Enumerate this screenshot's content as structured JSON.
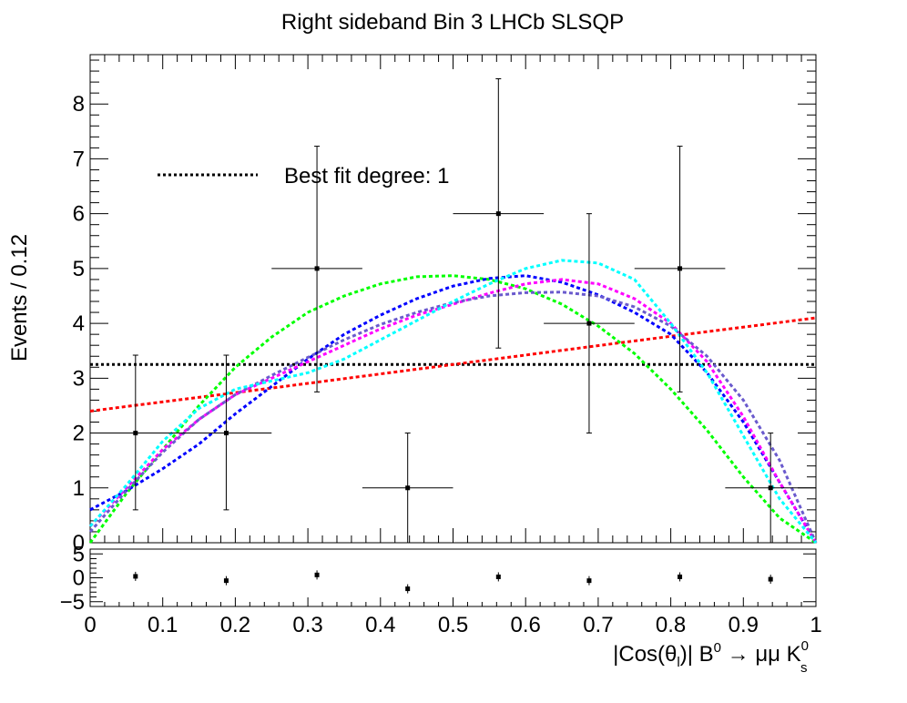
{
  "chart_data": {
    "type": "scatter",
    "title": "Right sideband Bin 3 LHCb SLSQP",
    "ylabel": "Events / 0.12",
    "xlabel_parts": {
      "pre": "|Cos(θ",
      "sub1": "l",
      "mid": ")| B",
      "sup1": "0",
      "arrow": " → μμ K",
      "sup2": "0",
      "sub2": "s"
    },
    "xlim": [
      0,
      1
    ],
    "ylim": [
      0,
      8.9
    ],
    "ratio_ylim": [
      -6,
      6
    ],
    "x_ticks": [
      "0",
      "0.1",
      "0.2",
      "0.3",
      "0.4",
      "0.5",
      "0.6",
      "0.7",
      "0.8",
      "0.9",
      "1"
    ],
    "y_ticks": [
      "0",
      "1",
      "2",
      "3",
      "4",
      "5",
      "6",
      "7",
      "8"
    ],
    "ratio_ticks": [
      "5",
      "0",
      "−5"
    ],
    "legend": {
      "label": "Best fit degree: 1",
      "position": "top-left"
    },
    "data_points": [
      {
        "x": 0.0625,
        "y": 2,
        "xerr": 0.0625,
        "ylo": 0.6,
        "yhi": 3.42
      },
      {
        "x": 0.1875,
        "y": 2,
        "xerr": 0.0625,
        "ylo": 0.6,
        "yhi": 3.42
      },
      {
        "x": 0.3125,
        "y": 5,
        "xerr": 0.0625,
        "ylo": 2.75,
        "yhi": 7.23
      },
      {
        "x": 0.4375,
        "y": 1,
        "xerr": 0.0625,
        "ylo": 0.0,
        "yhi": 2.0
      },
      {
        "x": 0.5625,
        "y": 6,
        "xerr": 0.0625,
        "ylo": 3.55,
        "yhi": 8.46
      },
      {
        "x": 0.6875,
        "y": 4,
        "xerr": 0.0625,
        "ylo": 2.0,
        "yhi": 6.0
      },
      {
        "x": 0.8125,
        "y": 5,
        "xerr": 0.0625,
        "ylo": 2.75,
        "yhi": 7.23
      },
      {
        "x": 0.9375,
        "y": 1,
        "xerr": 0.0625,
        "ylo": 0.0,
        "yhi": 2.0
      }
    ],
    "ratio_points": [
      {
        "x": 0.0625,
        "y": 0.3
      },
      {
        "x": 0.1875,
        "y": -0.6
      },
      {
        "x": 0.3125,
        "y": 0.6
      },
      {
        "x": 0.4375,
        "y": -2.3
      },
      {
        "x": 0.5625,
        "y": 0.2
      },
      {
        "x": 0.6875,
        "y": -0.6
      },
      {
        "x": 0.8125,
        "y": 0.2
      },
      {
        "x": 0.9375,
        "y": -0.3
      }
    ],
    "series": [
      {
        "style": "black-dotted",
        "color": "#000000",
        "points": [
          [
            0,
            3.25
          ],
          [
            1,
            3.25
          ]
        ]
      },
      {
        "style": "red-dashed",
        "color": "#ff0000",
        "points": [
          [
            0,
            2.4
          ],
          [
            0.25,
            2.82
          ],
          [
            0.5,
            3.25
          ],
          [
            0.75,
            3.68
          ],
          [
            1,
            4.1
          ]
        ]
      },
      {
        "style": "green-dashed",
        "color": "#00ff00",
        "points": [
          [
            0,
            0.0
          ],
          [
            0.05,
            0.9
          ],
          [
            0.1,
            1.7
          ],
          [
            0.15,
            2.5
          ],
          [
            0.2,
            3.2
          ],
          [
            0.25,
            3.75
          ],
          [
            0.3,
            4.2
          ],
          [
            0.35,
            4.5
          ],
          [
            0.4,
            4.72
          ],
          [
            0.45,
            4.85
          ],
          [
            0.5,
            4.87
          ],
          [
            0.55,
            4.8
          ],
          [
            0.6,
            4.63
          ],
          [
            0.65,
            4.35
          ],
          [
            0.7,
            3.95
          ],
          [
            0.75,
            3.45
          ],
          [
            0.8,
            2.8
          ],
          [
            0.85,
            2.05
          ],
          [
            0.9,
            1.2
          ],
          [
            0.95,
            0.45
          ],
          [
            1,
            0.0
          ]
        ]
      },
      {
        "style": "blue-dashed",
        "color": "#0000ff",
        "points": [
          [
            0,
            0.6
          ],
          [
            0.05,
            0.95
          ],
          [
            0.1,
            1.35
          ],
          [
            0.15,
            1.8
          ],
          [
            0.2,
            2.35
          ],
          [
            0.25,
            2.85
          ],
          [
            0.3,
            3.35
          ],
          [
            0.35,
            3.8
          ],
          [
            0.4,
            4.15
          ],
          [
            0.45,
            4.45
          ],
          [
            0.5,
            4.68
          ],
          [
            0.55,
            4.82
          ],
          [
            0.6,
            4.87
          ],
          [
            0.65,
            4.75
          ],
          [
            0.7,
            4.52
          ],
          [
            0.75,
            4.2
          ],
          [
            0.8,
            3.8
          ],
          [
            0.85,
            3.1
          ],
          [
            0.9,
            2.2
          ],
          [
            0.95,
            1.1
          ],
          [
            1,
            0.0
          ]
        ]
      },
      {
        "style": "magenta-dashed",
        "color": "#ff00ff",
        "points": [
          [
            0,
            0.3
          ],
          [
            0.05,
            1.0
          ],
          [
            0.1,
            1.7
          ],
          [
            0.15,
            2.25
          ],
          [
            0.2,
            2.7
          ],
          [
            0.25,
            3.0
          ],
          [
            0.3,
            3.3
          ],
          [
            0.35,
            3.6
          ],
          [
            0.4,
            3.9
          ],
          [
            0.45,
            4.15
          ],
          [
            0.5,
            4.35
          ],
          [
            0.55,
            4.55
          ],
          [
            0.6,
            4.72
          ],
          [
            0.65,
            4.8
          ],
          [
            0.7,
            4.72
          ],
          [
            0.75,
            4.45
          ],
          [
            0.8,
            4.0
          ],
          [
            0.85,
            3.3
          ],
          [
            0.9,
            2.3
          ],
          [
            0.95,
            1.1
          ],
          [
            1,
            0.0
          ]
        ]
      },
      {
        "style": "slateblue-dashed",
        "color": "#6a5acd",
        "points": [
          [
            0,
            0.2
          ],
          [
            0.05,
            0.95
          ],
          [
            0.1,
            1.65
          ],
          [
            0.15,
            2.25
          ],
          [
            0.2,
            2.7
          ],
          [
            0.25,
            3.05
          ],
          [
            0.3,
            3.38
          ],
          [
            0.35,
            3.7
          ],
          [
            0.4,
            3.98
          ],
          [
            0.45,
            4.2
          ],
          [
            0.5,
            4.38
          ],
          [
            0.55,
            4.5
          ],
          [
            0.6,
            4.56
          ],
          [
            0.65,
            4.57
          ],
          [
            0.7,
            4.5
          ],
          [
            0.75,
            4.3
          ],
          [
            0.8,
            3.95
          ],
          [
            0.85,
            3.4
          ],
          [
            0.9,
            2.6
          ],
          [
            0.95,
            1.5
          ],
          [
            1,
            0.0
          ]
        ]
      },
      {
        "style": "cyan-dashed",
        "color": "#00ffff",
        "points": [
          [
            0,
            0.3
          ],
          [
            0.05,
            1.05
          ],
          [
            0.1,
            1.85
          ],
          [
            0.15,
            2.45
          ],
          [
            0.2,
            2.8
          ],
          [
            0.25,
            2.95
          ],
          [
            0.3,
            3.1
          ],
          [
            0.35,
            3.35
          ],
          [
            0.4,
            3.7
          ],
          [
            0.45,
            4.05
          ],
          [
            0.5,
            4.4
          ],
          [
            0.55,
            4.72
          ],
          [
            0.6,
            5.0
          ],
          [
            0.65,
            5.15
          ],
          [
            0.7,
            5.1
          ],
          [
            0.75,
            4.8
          ],
          [
            0.8,
            4.0
          ],
          [
            0.85,
            3.1
          ],
          [
            0.9,
            1.95
          ],
          [
            0.95,
            0.8
          ],
          [
            1,
            0.0
          ]
        ]
      }
    ]
  }
}
